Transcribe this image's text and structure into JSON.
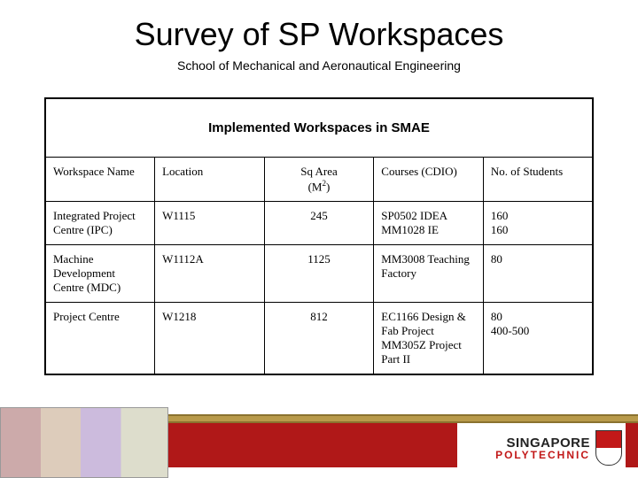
{
  "title": "Survey of SP Workspaces",
  "subtitle": "School of Mechanical and Aeronautical Engineering",
  "table": {
    "caption": "Implemented Workspaces in SMAE",
    "columns": {
      "name": "Workspace Name",
      "location": "Location",
      "area_label": "Sq Area",
      "area_unit_prefix": "(M",
      "area_unit_sup": "2",
      "area_unit_suffix": ")",
      "courses": "Courses (CDIO)",
      "students": "No. of Students"
    },
    "rows": [
      {
        "name": "Integrated Project Centre (IPC)",
        "location": "W1115",
        "area": "245",
        "courses_l1": "SP0502 IDEA",
        "courses_l2": "MM1028 IE",
        "students_l1": "160",
        "students_l2": "160"
      },
      {
        "name": "Machine Development Centre (MDC)",
        "location": "W1112A",
        "area": "1125",
        "courses_l1": "MM3008 Teaching Factory",
        "courses_l2": "",
        "students_l1": "80",
        "students_l2": ""
      },
      {
        "name": "Project Centre",
        "location": "W1218",
        "area": "812",
        "courses_l1": "EC1166 Design & Fab Project",
        "courses_l2": "MM305Z Project Part II",
        "students_l1": "80",
        "students_l2": "400-500"
      }
    ]
  },
  "footer": {
    "gold_bar_color": "#b89a4a",
    "red_bar_color": "#b01818",
    "logo_line1": "SINGAPORE",
    "logo_line2": "POLYTECHNIC"
  }
}
